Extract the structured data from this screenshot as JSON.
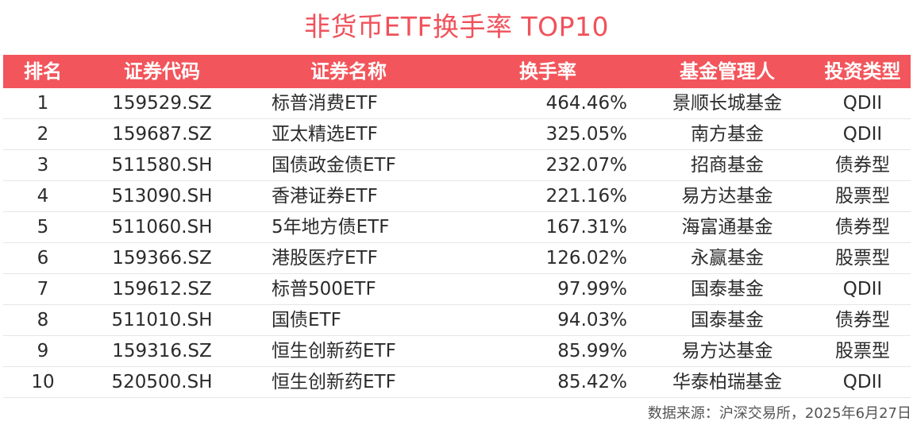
{
  "title": "非货币ETF换手率 TOP10",
  "table": {
    "headers": [
      "排名",
      "证券代码",
      "证券名称",
      "换手率",
      "基金管理人",
      "投资类型"
    ],
    "rows": [
      [
        "1",
        "159529.SZ",
        "标普消费ETF",
        "464.46%",
        "景顺长城基金",
        "QDII"
      ],
      [
        "2",
        "159687.SZ",
        "亚太精选ETF",
        "325.05%",
        "南方基金",
        "QDII"
      ],
      [
        "3",
        "511580.SH",
        "国债政金债ETF",
        "232.07%",
        "招商基金",
        "债券型"
      ],
      [
        "4",
        "513090.SH",
        "香港证券ETF",
        "221.16%",
        "易方达基金",
        "股票型"
      ],
      [
        "5",
        "511060.SH",
        "5年地方债ETF",
        "167.31%",
        "海富通基金",
        "债券型"
      ],
      [
        "6",
        "159366.SZ",
        "港股医疗ETF",
        "126.02%",
        "永赢基金",
        "股票型"
      ],
      [
        "7",
        "159612.SZ",
        "标普500ETF",
        "97.99%",
        "国泰基金",
        "QDII"
      ],
      [
        "8",
        "511010.SH",
        "国债ETF",
        "94.03%",
        "国泰基金",
        "债券型"
      ],
      [
        "9",
        "159316.SZ",
        "恒生创新药ETF",
        "85.99%",
        "易方达基金",
        "股票型"
      ],
      [
        "10",
        "520500.SH",
        "恒生创新药ETF",
        "85.42%",
        "华泰柏瑞基金",
        "QDII"
      ]
    ]
  },
  "source": "数据来源：沪深交易所，2025年6月27日",
  "colors": {
    "title": "#f0525b",
    "header_bg": "#f2555b",
    "header_text": "#ffffff"
  }
}
